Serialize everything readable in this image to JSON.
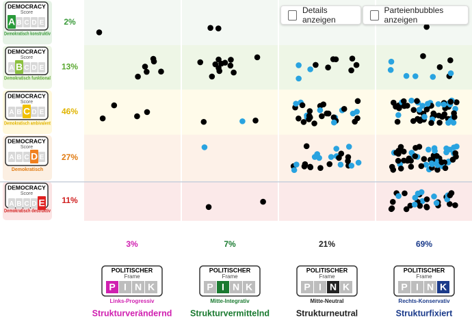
{
  "controls": [
    {
      "label": "Details anzeigen"
    },
    {
      "label": "Parteienbubbles anzeigen"
    }
  ],
  "democracy_badge": {
    "title": "DEMOCRACY",
    "subtitle": "Score",
    "grades": [
      "A",
      "B",
      "C",
      "D",
      "E"
    ]
  },
  "rows": [
    {
      "label": "Demokratisch konstruktiv",
      "share": "2%",
      "color": "#3a9a3a"
    },
    {
      "label": "Demokratisch funktional",
      "share": "13%",
      "color": "#5aa830"
    },
    {
      "label": "Demokratisch ambivalent",
      "share": "46%",
      "color": "#e0b400"
    },
    {
      "label": "Demokratisch",
      "share": "27%",
      "color": "#e07a10"
    },
    {
      "label": "Demokratisch destruktiv",
      "share": "11%",
      "color": "#d02020"
    }
  ],
  "frame_badge": {
    "title": "POLITISCHER",
    "subtitle": "Frame",
    "letters": [
      "P",
      "I",
      "N",
      "K"
    ]
  },
  "columns": [
    {
      "share": "3%",
      "sublabel": "Links-Progressiv",
      "title": "Strukturverändernd",
      "color": "#d020b0"
    },
    {
      "share": "7%",
      "sublabel": "Mitte-Integrativ",
      "title": "Strukturvermittelnd",
      "color": "#1a7a30"
    },
    {
      "share": "21%",
      "sublabel": "Mitte-Neutral",
      "title": "Strukturneutral",
      "color": "#222222"
    },
    {
      "share": "69%",
      "sublabel": "Rechts-Konservativ",
      "title": "Strukturfixiert",
      "color": "#1a3a8a"
    }
  ]
}
